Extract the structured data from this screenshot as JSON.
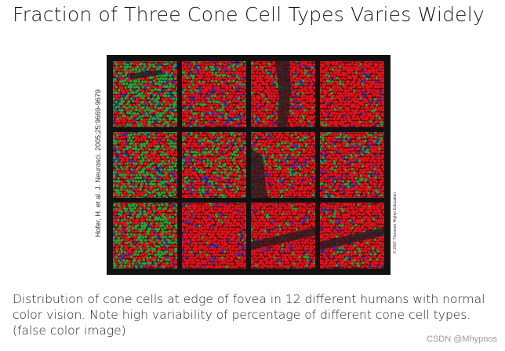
{
  "slide": {
    "title": "Fraction of Three Cone Cell Types Varies Widely",
    "citation_left": "Hofer, H. et al. J. Neurosci. 2005;25:9669-9679",
    "citation_right": "© 2007 Thomson Higher Education",
    "caption": "Distribution of cone cells at edge of fovea in 12 different humans with normal color vision. Note high variability of percentage of different cone cell types. (false color image)",
    "watermark": "CSDN @Mhypnos"
  },
  "figure": {
    "colors": {
      "L_cone": "#e0141e",
      "M_cone": "#1fa83a",
      "S_cone": "#2a36c8",
      "background": "#121212"
    },
    "panels": [
      {
        "green": 0.55,
        "blue": 0.06,
        "dark": "band-top"
      },
      {
        "green": 0.22,
        "blue": 0.08,
        "dark": "none"
      },
      {
        "green": 0.12,
        "blue": 0.06,
        "dark": "center"
      },
      {
        "green": 0.06,
        "blue": 0.05,
        "dark": "none"
      },
      {
        "green": 0.42,
        "blue": 0.07,
        "dark": "none"
      },
      {
        "green": 0.3,
        "blue": 0.07,
        "dark": "none"
      },
      {
        "green": 0.16,
        "blue": 0.06,
        "dark": "left"
      },
      {
        "green": 0.2,
        "blue": 0.06,
        "dark": "none"
      },
      {
        "green": 0.48,
        "blue": 0.07,
        "dark": "none"
      },
      {
        "green": 0.06,
        "blue": 0.05,
        "dark": "none"
      },
      {
        "green": 0.07,
        "blue": 0.05,
        "dark": "band-mid"
      },
      {
        "green": 0.1,
        "blue": 0.05,
        "dark": "band-mid"
      }
    ]
  }
}
